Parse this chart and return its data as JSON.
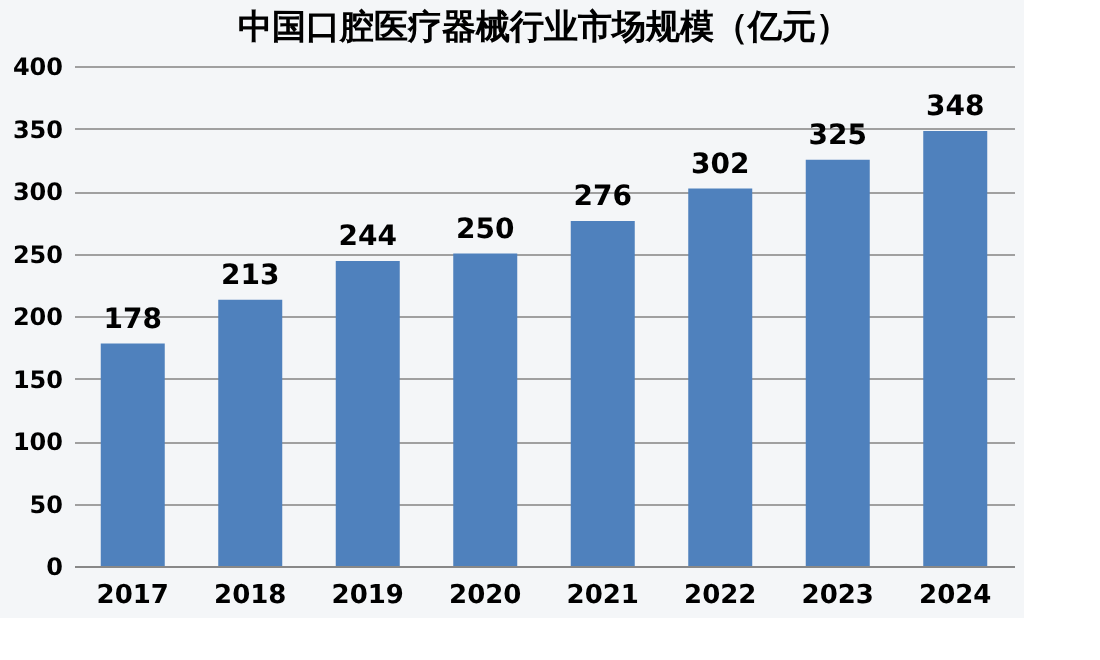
{
  "chart_data": {
    "type": "bar",
    "title": "中国口腔医疗器械行业市场规模（亿元）",
    "categories": [
      "2017",
      "2018",
      "2019",
      "2020",
      "2021",
      "2022",
      "2023",
      "2024"
    ],
    "values": [
      178,
      213,
      244,
      250,
      276,
      302,
      325,
      348
    ],
    "color": "#4f81bd",
    "ylim": [
      0,
      400
    ],
    "yticks": [
      0,
      50,
      100,
      150,
      200,
      250,
      300,
      350,
      400
    ],
    "grid": "y",
    "data_labels": true
  }
}
